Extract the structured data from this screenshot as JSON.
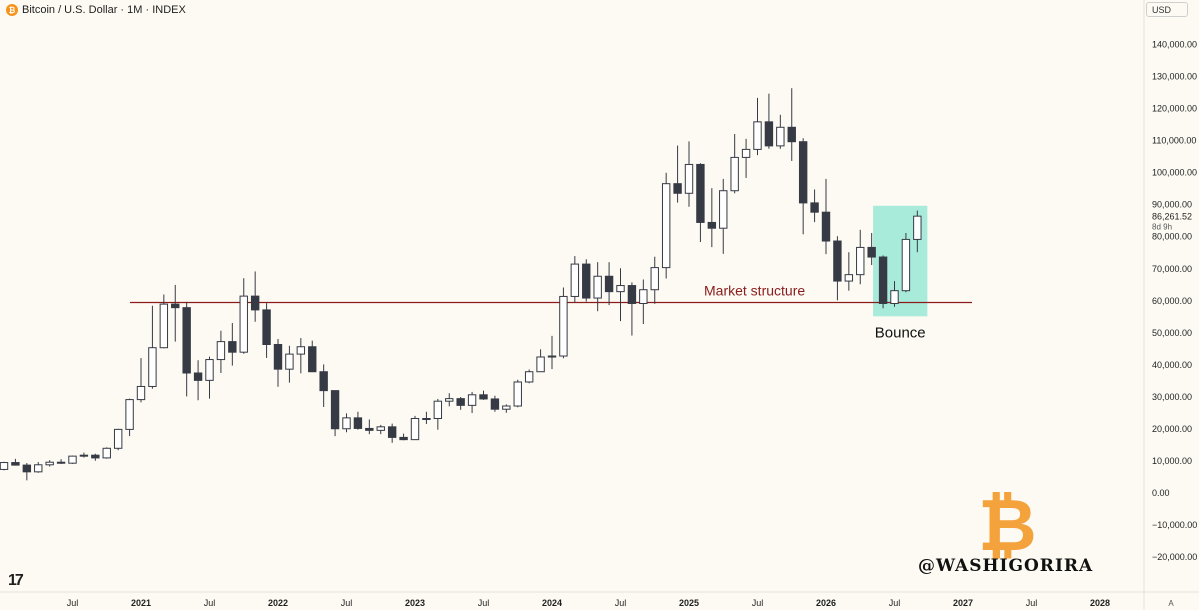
{
  "header": {
    "title": "Bitcoin / U.S. Dollar · 1M · INDEX",
    "currency_button": "USD"
  },
  "watermark": {
    "handle": "@WASHIGORIRA",
    "logo_icon": "bitcoin-logo-icon"
  },
  "tv_logo": "17",
  "colors": {
    "background": "#fcfaf2",
    "bull_fill": "#ffffff",
    "bear_fill": "#363a45",
    "candle_stroke": "#363a45",
    "structure_line": "#8a1c1c",
    "highlight": "#8de6d3"
  },
  "chart_data": {
    "type": "candlestick",
    "title": "Bitcoin / U.S. Dollar · 1M · INDEX",
    "y_axis": {
      "ticks": [
        140000,
        130000,
        120000,
        110000,
        100000,
        90000,
        80000,
        70000,
        60000,
        50000,
        40000,
        30000,
        20000,
        10000,
        0,
        -10000,
        -20000
      ],
      "tick_labels": [
        "140,000.00",
        "130,000.00",
        "120,000.00",
        "110,000.00",
        "100,000.00",
        "90,000.00",
        "80,000.00",
        "70,000.00",
        "60,000.00",
        "50,000.00",
        "40,000.00",
        "30,000.00",
        "20,000.00",
        "10,000.00",
        "0.00",
        "−10,000.00",
        "−20,000.00"
      ],
      "range": [
        -21000,
        143000
      ]
    },
    "x_axis": {
      "ticks": [
        {
          "label": "Jul",
          "bold": false
        },
        {
          "label": "2021",
          "bold": true
        },
        {
          "label": "Jul",
          "bold": false
        },
        {
          "label": "2022",
          "bold": true
        },
        {
          "label": "Jul",
          "bold": false
        },
        {
          "label": "2023",
          "bold": true
        },
        {
          "label": "Jul",
          "bold": false
        },
        {
          "label": "2024",
          "bold": true
        },
        {
          "label": "Jul",
          "bold": false
        },
        {
          "label": "2025",
          "bold": true
        },
        {
          "label": "Jul",
          "bold": false
        },
        {
          "label": "2026",
          "bold": true
        },
        {
          "label": "Jul",
          "bold": false
        },
        {
          "label": "2027",
          "bold": true
        },
        {
          "label": "Jul",
          "bold": false
        },
        {
          "label": "2028",
          "bold": true
        }
      ],
      "tick_months": [
        "2020-07",
        "2021-01",
        "2021-07",
        "2022-01",
        "2022-07",
        "2023-01",
        "2023-07",
        "2024-01",
        "2024-07",
        "2025-01",
        "2025-07",
        "2026-01",
        "2026-07",
        "2027-01",
        "2027-07",
        "2028-01"
      ],
      "corner_label": "A"
    },
    "last_price": {
      "value": 86261.52,
      "label": "86,261.52",
      "countdown": "8d 9h"
    },
    "candles": [
      {
        "t": "2020-01",
        "o": 7200,
        "h": 9600,
        "l": 6900,
        "c": 9350
      },
      {
        "t": "2020-02",
        "o": 9350,
        "h": 10500,
        "l": 8400,
        "c": 8550
      },
      {
        "t": "2020-03",
        "o": 8550,
        "h": 9200,
        "l": 3800,
        "c": 6450
      },
      {
        "t": "2020-04",
        "o": 6450,
        "h": 9500,
        "l": 6150,
        "c": 8650
      },
      {
        "t": "2020-05",
        "o": 8650,
        "h": 10100,
        "l": 8100,
        "c": 9450
      },
      {
        "t": "2020-06",
        "o": 9450,
        "h": 10400,
        "l": 8900,
        "c": 9150
      },
      {
        "t": "2020-07",
        "o": 9150,
        "h": 11500,
        "l": 8950,
        "c": 11350
      },
      {
        "t": "2020-08",
        "o": 11350,
        "h": 12450,
        "l": 10900,
        "c": 11650
      },
      {
        "t": "2020-09",
        "o": 11650,
        "h": 12100,
        "l": 9900,
        "c": 10800
      },
      {
        "t": "2020-10",
        "o": 10800,
        "h": 14100,
        "l": 10550,
        "c": 13800
      },
      {
        "t": "2020-11",
        "o": 13800,
        "h": 19900,
        "l": 13200,
        "c": 19700
      },
      {
        "t": "2020-12",
        "o": 19700,
        "h": 29300,
        "l": 17600,
        "c": 29000
      },
      {
        "t": "2021-01",
        "o": 29000,
        "h": 41950,
        "l": 28150,
        "c": 33100
      },
      {
        "t": "2021-02",
        "o": 33100,
        "h": 58300,
        "l": 32400,
        "c": 45200
      },
      {
        "t": "2021-03",
        "o": 45200,
        "h": 61800,
        "l": 45000,
        "c": 58800
      },
      {
        "t": "2021-04",
        "o": 58800,
        "h": 64800,
        "l": 47100,
        "c": 57700
      },
      {
        "t": "2021-05",
        "o": 57700,
        "h": 59500,
        "l": 30000,
        "c": 37300
      },
      {
        "t": "2021-06",
        "o": 37300,
        "h": 41300,
        "l": 28800,
        "c": 35000
      },
      {
        "t": "2021-07",
        "o": 35000,
        "h": 42400,
        "l": 29300,
        "c": 41500
      },
      {
        "t": "2021-08",
        "o": 41500,
        "h": 50500,
        "l": 37300,
        "c": 47100
      },
      {
        "t": "2021-09",
        "o": 47100,
        "h": 52900,
        "l": 39600,
        "c": 43800
      },
      {
        "t": "2021-10",
        "o": 43800,
        "h": 66900,
        "l": 43300,
        "c": 61300
      },
      {
        "t": "2021-11",
        "o": 61300,
        "h": 69000,
        "l": 53300,
        "c": 57000
      },
      {
        "t": "2021-12",
        "o": 57000,
        "h": 59100,
        "l": 42000,
        "c": 46200
      },
      {
        "t": "2022-01",
        "o": 46200,
        "h": 47900,
        "l": 33000,
        "c": 38500
      },
      {
        "t": "2022-02",
        "o": 38500,
        "h": 45800,
        "l": 34300,
        "c": 43200
      },
      {
        "t": "2022-03",
        "o": 43200,
        "h": 48200,
        "l": 37200,
        "c": 45500
      },
      {
        "t": "2022-04",
        "o": 45500,
        "h": 47400,
        "l": 37600,
        "c": 37700
      },
      {
        "t": "2022-05",
        "o": 37700,
        "h": 40000,
        "l": 26700,
        "c": 31800
      },
      {
        "t": "2022-06",
        "o": 31800,
        "h": 31900,
        "l": 17600,
        "c": 19900
      },
      {
        "t": "2022-07",
        "o": 19900,
        "h": 24700,
        "l": 18800,
        "c": 23300
      },
      {
        "t": "2022-08",
        "o": 23300,
        "h": 25200,
        "l": 19600,
        "c": 20000
      },
      {
        "t": "2022-09",
        "o": 20000,
        "h": 22800,
        "l": 18200,
        "c": 19400
      },
      {
        "t": "2022-10",
        "o": 19400,
        "h": 21100,
        "l": 18200,
        "c": 20500
      },
      {
        "t": "2022-11",
        "o": 20500,
        "h": 21500,
        "l": 15500,
        "c": 17200
      },
      {
        "t": "2022-12",
        "o": 17200,
        "h": 18400,
        "l": 16300,
        "c": 16500
      },
      {
        "t": "2023-01",
        "o": 16500,
        "h": 23900,
        "l": 16500,
        "c": 23100
      },
      {
        "t": "2023-02",
        "o": 23100,
        "h": 25200,
        "l": 21400,
        "c": 23100
      },
      {
        "t": "2023-03",
        "o": 23100,
        "h": 29200,
        "l": 19600,
        "c": 28500
      },
      {
        "t": "2023-04",
        "o": 28500,
        "h": 31000,
        "l": 26900,
        "c": 29300
      },
      {
        "t": "2023-05",
        "o": 29300,
        "h": 29800,
        "l": 25800,
        "c": 27200
      },
      {
        "t": "2023-06",
        "o": 27200,
        "h": 31400,
        "l": 24800,
        "c": 30500
      },
      {
        "t": "2023-07",
        "o": 30500,
        "h": 31800,
        "l": 28900,
        "c": 29200
      },
      {
        "t": "2023-08",
        "o": 29200,
        "h": 30200,
        "l": 25200,
        "c": 26000
      },
      {
        "t": "2023-09",
        "o": 26000,
        "h": 27500,
        "l": 24900,
        "c": 27000
      },
      {
        "t": "2023-10",
        "o": 27000,
        "h": 35200,
        "l": 26600,
        "c": 34500
      },
      {
        "t": "2023-11",
        "o": 34500,
        "h": 38400,
        "l": 34100,
        "c": 37700
      },
      {
        "t": "2023-12",
        "o": 37700,
        "h": 44700,
        "l": 37600,
        "c": 42300
      },
      {
        "t": "2024-01",
        "o": 42300,
        "h": 48900,
        "l": 38500,
        "c": 42600
      },
      {
        "t": "2024-02",
        "o": 42600,
        "h": 64000,
        "l": 41900,
        "c": 61200
      },
      {
        "t": "2024-03",
        "o": 61200,
        "h": 73800,
        "l": 59300,
        "c": 71300
      },
      {
        "t": "2024-04",
        "o": 71300,
        "h": 72800,
        "l": 59600,
        "c": 60700
      },
      {
        "t": "2024-05",
        "o": 60700,
        "h": 71900,
        "l": 56600,
        "c": 67500
      },
      {
        "t": "2024-06",
        "o": 67500,
        "h": 71900,
        "l": 58500,
        "c": 62700
      },
      {
        "t": "2024-07",
        "o": 62700,
        "h": 70000,
        "l": 53500,
        "c": 64600
      },
      {
        "t": "2024-08",
        "o": 64600,
        "h": 65600,
        "l": 49000,
        "c": 59000
      },
      {
        "t": "2024-09",
        "o": 59000,
        "h": 66500,
        "l": 52600,
        "c": 63300
      },
      {
        "t": "2024-10",
        "o": 63300,
        "h": 73600,
        "l": 58900,
        "c": 70200
      },
      {
        "t": "2024-11",
        "o": 70200,
        "h": 99800,
        "l": 66800,
        "c": 96400
      },
      {
        "t": "2024-12",
        "o": 96400,
        "h": 108300,
        "l": 90500,
        "c": 93400
      },
      {
        "t": "2025-01",
        "o": 93400,
        "h": 109600,
        "l": 89200,
        "c": 102400
      },
      {
        "t": "2025-02",
        "o": 102400,
        "h": 102800,
        "l": 78200,
        "c": 84300
      },
      {
        "t": "2025-03",
        "o": 84300,
        "h": 95000,
        "l": 76600,
        "c": 82500
      },
      {
        "t": "2025-04",
        "o": 82500,
        "h": 97900,
        "l": 74500,
        "c": 94200
      },
      {
        "t": "2025-05",
        "o": 94200,
        "h": 111900,
        "l": 93400,
        "c": 104600
      },
      {
        "t": "2025-06",
        "o": 104600,
        "h": 110400,
        "l": 98200,
        "c": 107100
      },
      {
        "t": "2025-07",
        "o": 107100,
        "h": 123200,
        "l": 105300,
        "c": 115700
      },
      {
        "t": "2025-08",
        "o": 115700,
        "h": 124500,
        "l": 107300,
        "c": 108200
      },
      {
        "t": "2025-09",
        "o": 108200,
        "h": 117900,
        "l": 107300,
        "c": 114000
      },
      {
        "t": "2025-10",
        "o": 114000,
        "h": 126200,
        "l": 103500,
        "c": 109500
      },
      {
        "t": "2025-11",
        "o": 109500,
        "h": 110600,
        "l": 80600,
        "c": 90400
      },
      {
        "t": "2025-12",
        "o": 90400,
        "h": 94600,
        "l": 84400,
        "c": 87500
      },
      {
        "t": "2026-01",
        "o": 87500,
        "h": 97900,
        "l": 74400,
        "c": 78500
      },
      {
        "t": "2026-02",
        "o": 78500,
        "h": 80000,
        "l": 60000,
        "c": 66000
      },
      {
        "t": "2026-03",
        "o": 66000,
        "h": 75000,
        "l": 63000,
        "c": 68000
      },
      {
        "t": "2026-04",
        "o": 68000,
        "h": 82000,
        "l": 65000,
        "c": 76500
      },
      {
        "t": "2026-05",
        "o": 76500,
        "h": 81000,
        "l": 71000,
        "c": 73500
      },
      {
        "t": "2026-06",
        "o": 73500,
        "h": 74000,
        "l": 57500,
        "c": 59000
      },
      {
        "t": "2026-07",
        "o": 59000,
        "h": 66000,
        "l": 58000,
        "c": 63000
      },
      {
        "t": "2026-08",
        "o": 63000,
        "h": 81000,
        "l": 62500,
        "c": 79000
      },
      {
        "t": "2026-09",
        "o": 79000,
        "h": 88000,
        "l": 75000,
        "c": 86261.52
      }
    ],
    "horizontal_line": {
      "value": 59000,
      "label": "Market structure",
      "from": "2021-01",
      "to": "2027-01"
    },
    "highlight_box": {
      "from": "2026-06",
      "to": "2026-09",
      "y_low": 55000,
      "y_high": 89500,
      "label": "Bounce"
    }
  }
}
